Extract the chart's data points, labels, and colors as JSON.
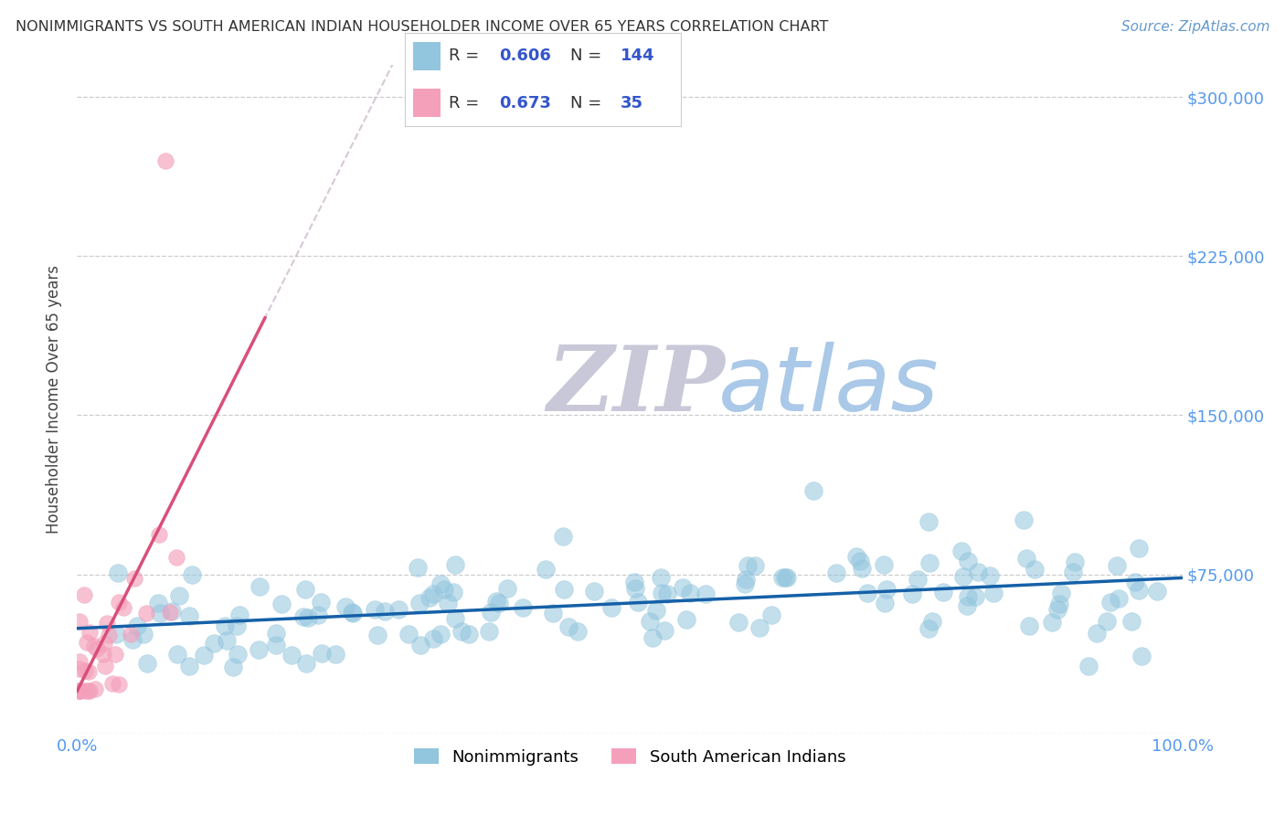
{
  "title": "NONIMMIGRANTS VS SOUTH AMERICAN INDIAN HOUSEHOLDER INCOME OVER 65 YEARS CORRELATION CHART",
  "source": "Source: ZipAtlas.com",
  "ylabel": "Householder Income Over 65 years",
  "xlim": [
    0.0,
    1.0
  ],
  "ylim": [
    0,
    315000
  ],
  "yticks": [
    0,
    75000,
    150000,
    225000,
    300000
  ],
  "ytick_labels": [
    "",
    "$75,000",
    "$150,000",
    "$225,000",
    "$300,000"
  ],
  "xtick_labels": [
    "0.0%",
    "100.0%"
  ],
  "blue_R": "0.606",
  "blue_N": "144",
  "pink_R": "0.673",
  "pink_N": "35",
  "blue_color": "#92c5de",
  "pink_color": "#f4a0bb",
  "blue_line_color": "#1560a8",
  "pink_line_color": "#d94f7a",
  "pink_dash_color": "#ccbbcc",
  "title_color": "#333333",
  "axis_tick_color": "#5599ee",
  "watermark_zip_color": "#c8c8d8",
  "watermark_atlas_color": "#aac8e8",
  "background_color": "#ffffff",
  "grid_color": "#cccccc",
  "legend_text_color": "#333333",
  "legend_val_color": "#3355cc",
  "source_color": "#6699cc"
}
